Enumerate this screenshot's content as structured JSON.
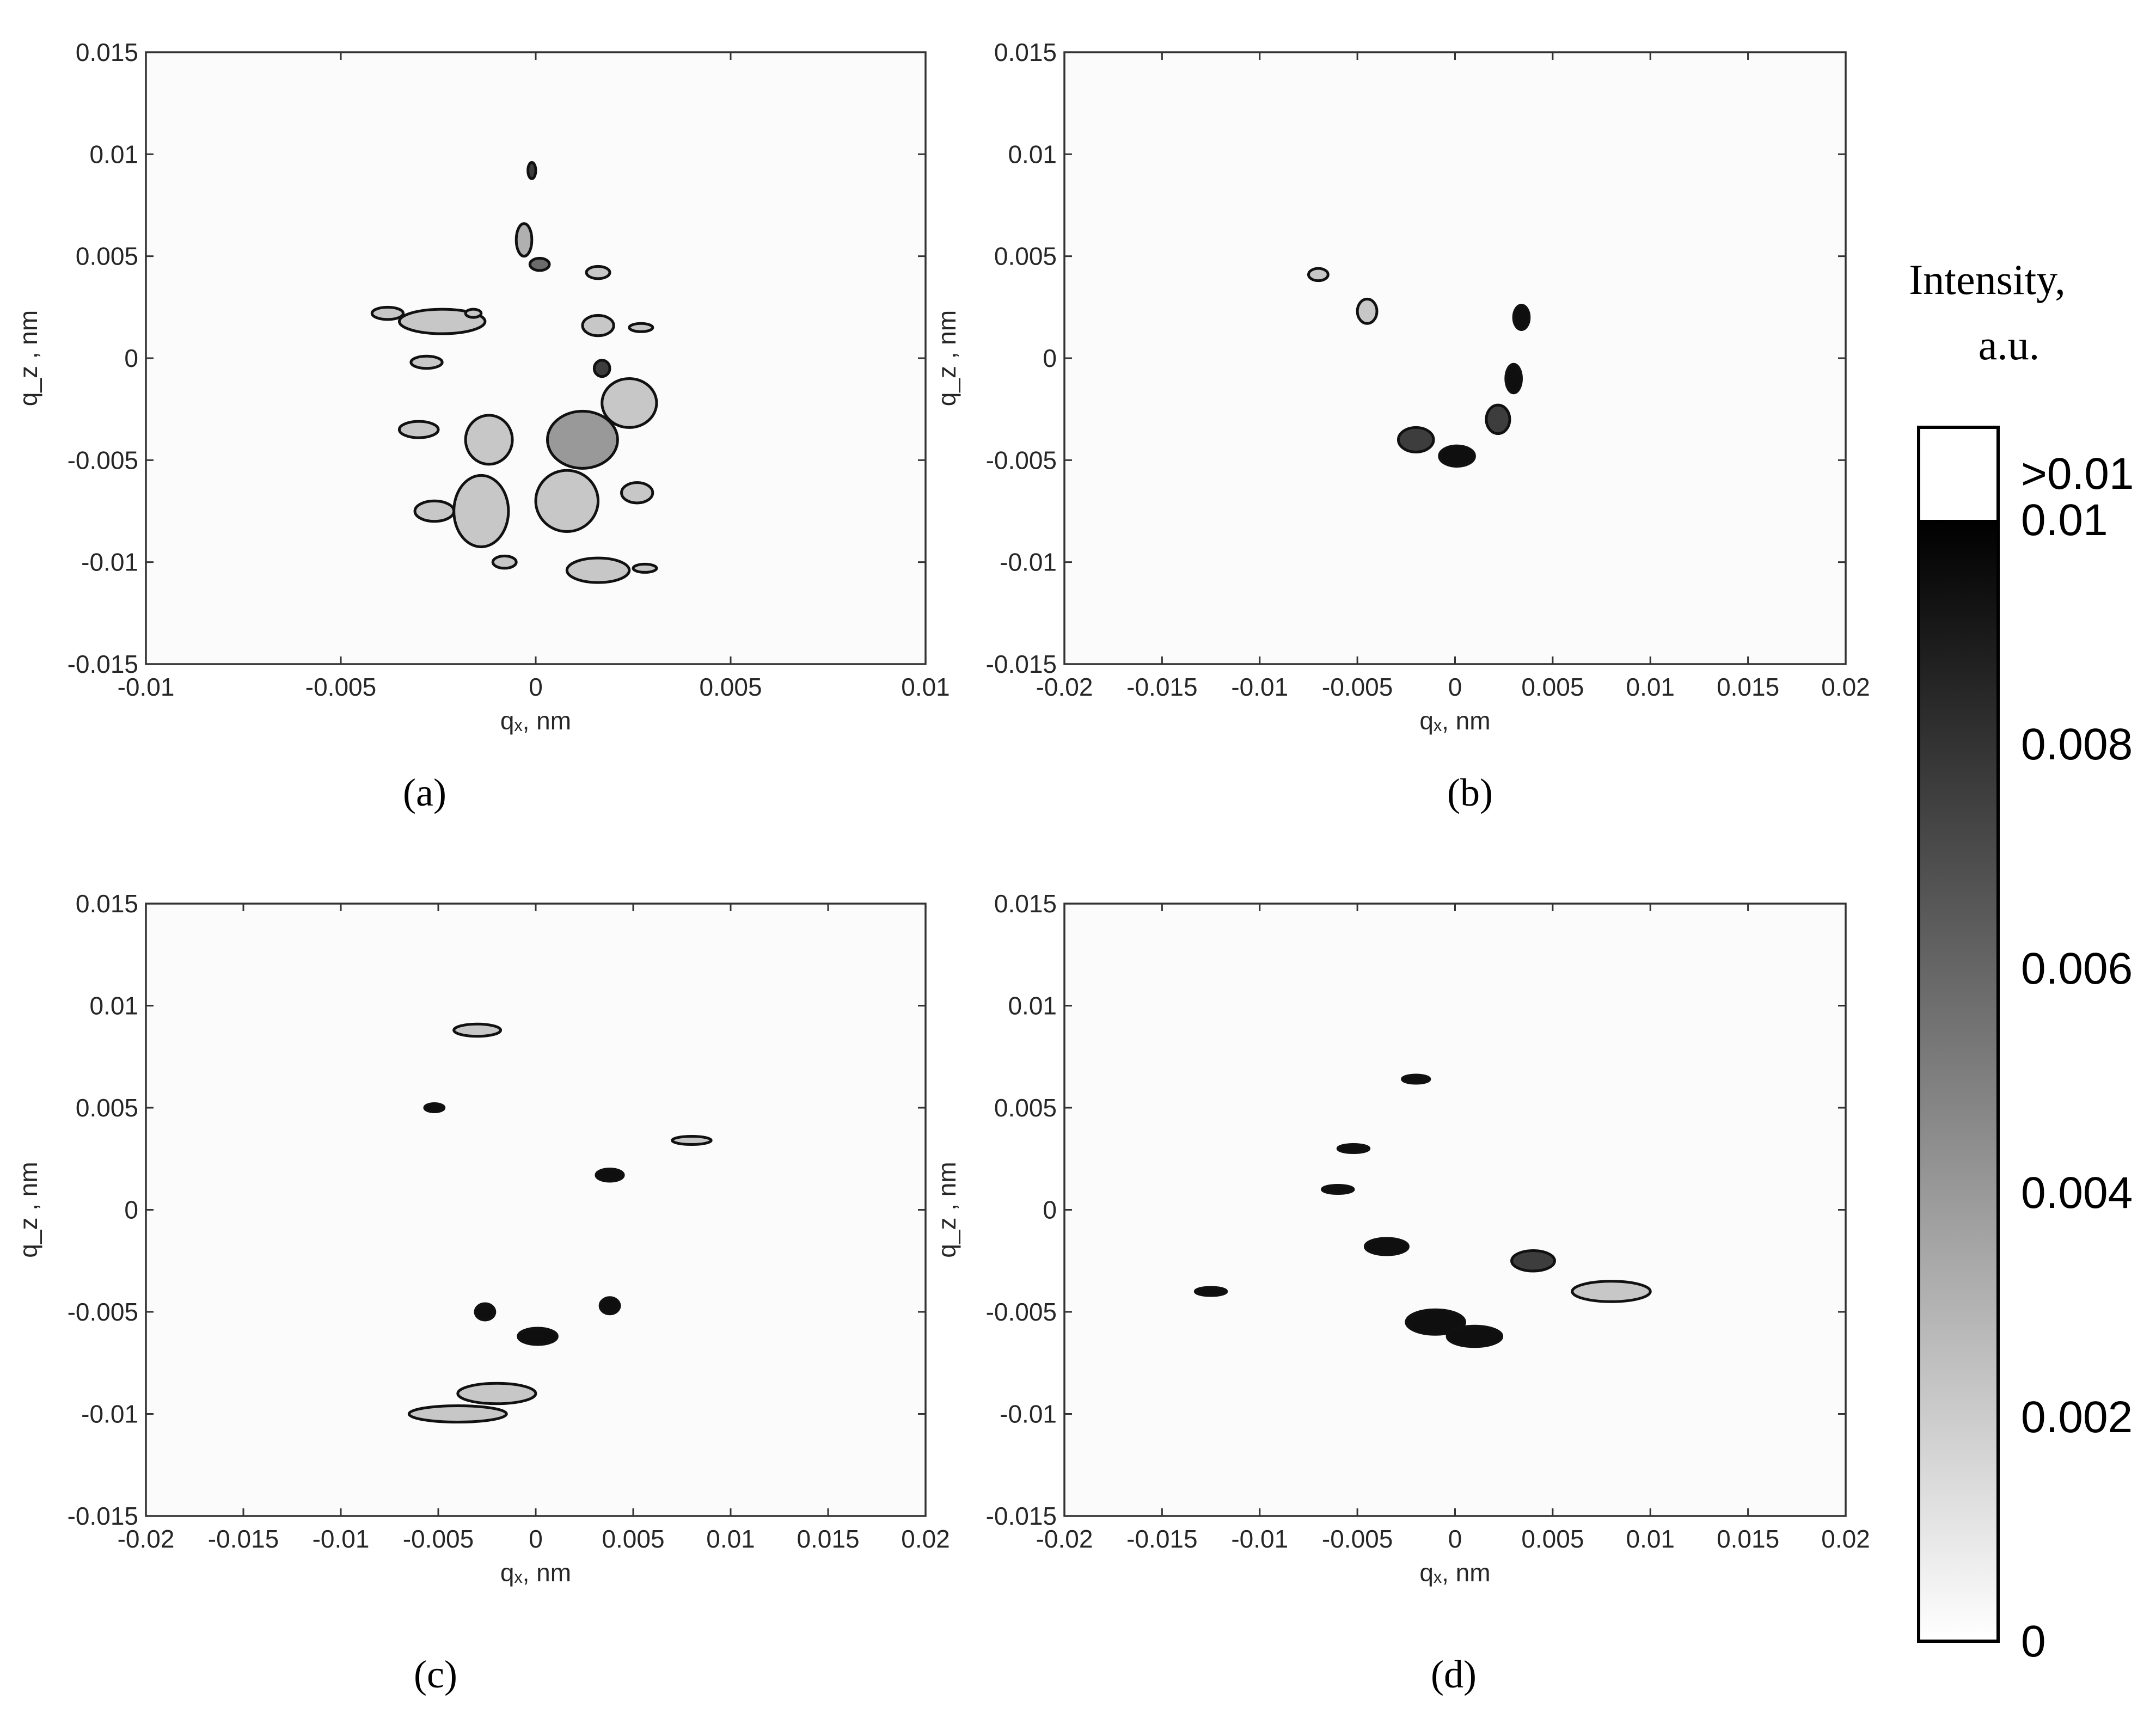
{
  "chart_data": [
    {
      "type": "heatmap",
      "panel_label": "(a)",
      "xlabel": "qₓ, nm",
      "ylabel": "q_z , nm",
      "xlim": [
        -0.01,
        0.01
      ],
      "ylim": [
        -0.015,
        0.015
      ],
      "xticks": [
        "-0.01",
        "-0.005",
        "0",
        "0.005",
        "0.01"
      ],
      "yticks": [
        "0.015",
        "0.01",
        "0.005",
        "0",
        "-0.005",
        "-0.01",
        "-0.015"
      ],
      "contours": [
        {
          "x": -0.0003,
          "y": 0.0058,
          "w": 0.0004,
          "h": 0.0016,
          "level": 0.003
        },
        {
          "x": -0.0001,
          "y": 0.0092,
          "w": 0.0002,
          "h": 0.0008,
          "level": 0.008
        },
        {
          "x": 0.0001,
          "y": 0.0046,
          "w": 0.0005,
          "h": 0.0006,
          "level": 0.006
        },
        {
          "x": -0.0024,
          "y": 0.0018,
          "w": 0.0022,
          "h": 0.0012,
          "level": 0.002
        },
        {
          "x": -0.0038,
          "y": 0.0022,
          "w": 0.0008,
          "h": 0.0006,
          "level": 0.002
        },
        {
          "x": 0.0016,
          "y": 0.0016,
          "w": 0.0008,
          "h": 0.001,
          "level": 0.002
        },
        {
          "x": 0.0017,
          "y": -0.0005,
          "w": 0.0004,
          "h": 0.0008,
          "level": 0.008
        },
        {
          "x": 0.0016,
          "y": 0.0042,
          "w": 0.0006,
          "h": 0.0006,
          "level": 0.002
        },
        {
          "x": -0.0028,
          "y": -0.0002,
          "w": 0.0008,
          "h": 0.0006,
          "level": 0.002
        },
        {
          "x": -0.0012,
          "y": -0.004,
          "w": 0.0012,
          "h": 0.0024,
          "level": 0.002
        },
        {
          "x": -0.0014,
          "y": -0.0075,
          "w": 0.0014,
          "h": 0.0035,
          "level": 0.002
        },
        {
          "x": -0.0026,
          "y": -0.0075,
          "w": 0.001,
          "h": 0.001,
          "level": 0.002
        },
        {
          "x": 0.0012,
          "y": -0.004,
          "w": 0.0018,
          "h": 0.0028,
          "level": 0.004
        },
        {
          "x": 0.0008,
          "y": -0.007,
          "w": 0.0016,
          "h": 0.003,
          "level": 0.002
        },
        {
          "x": 0.0016,
          "y": -0.0104,
          "w": 0.0016,
          "h": 0.0012,
          "level": 0.002
        },
        {
          "x": 0.0024,
          "y": -0.0022,
          "w": 0.0014,
          "h": 0.0024,
          "level": 0.002
        },
        {
          "x": 0.0026,
          "y": -0.0066,
          "w": 0.0008,
          "h": 0.001,
          "level": 0.002
        },
        {
          "x": 0.0027,
          "y": 0.0015,
          "w": 0.0006,
          "h": 0.0004,
          "level": 0.002
        },
        {
          "x": -0.0008,
          "y": -0.01,
          "w": 0.0006,
          "h": 0.0006,
          "level": 0.002
        },
        {
          "x": -0.003,
          "y": -0.0035,
          "w": 0.001,
          "h": 0.0008,
          "level": 0.002
        },
        {
          "x": 0.0028,
          "y": -0.0103,
          "w": 0.0006,
          "h": 0.0004,
          "level": 0.002
        },
        {
          "x": -0.0016,
          "y": 0.0022,
          "w": 0.0004,
          "h": 0.0004,
          "level": 0.002
        }
      ]
    },
    {
      "type": "heatmap",
      "panel_label": "(b)",
      "xlabel": "qₓ, nm",
      "ylabel": "q_z , nm",
      "xlim": [
        -0.02,
        0.02
      ],
      "ylim": [
        -0.015,
        0.015
      ],
      "xticks": [
        "-0.02",
        "-0.015",
        "-0.01",
        "-0.005",
        "0",
        "0.005",
        "0.01",
        "0.015",
        "0.02"
      ],
      "yticks": [
        "0.015",
        "0.01",
        "0.005",
        "0",
        "-0.005",
        "-0.01",
        "-0.015"
      ],
      "contours": [
        {
          "x": 0.0001,
          "y": -0.0048,
          "w": 0.0018,
          "h": 0.001,
          "level": 0.01
        },
        {
          "x": -0.002,
          "y": -0.004,
          "w": 0.0018,
          "h": 0.0012,
          "level": 0.008
        },
        {
          "x": 0.0022,
          "y": -0.003,
          "w": 0.0012,
          "h": 0.0014,
          "level": 0.008
        },
        {
          "x": 0.003,
          "y": -0.001,
          "w": 0.0008,
          "h": 0.0014,
          "level": 0.01
        },
        {
          "x": 0.0034,
          "y": 0.002,
          "w": 0.0008,
          "h": 0.0012,
          "level": 0.01
        },
        {
          "x": -0.0045,
          "y": 0.0023,
          "w": 0.001,
          "h": 0.0012,
          "level": 0.002
        },
        {
          "x": -0.007,
          "y": 0.0041,
          "w": 0.001,
          "h": 0.0006,
          "level": 0.002
        }
      ]
    },
    {
      "type": "heatmap",
      "panel_label": "(c)",
      "xlabel": "qₓ, nm",
      "ylabel": "q_z , nm",
      "xlim": [
        -0.02,
        0.02
      ],
      "ylim": [
        -0.015,
        0.015
      ],
      "xticks": [
        "-0.02",
        "-0.015",
        "-0.01",
        "-0.005",
        "0",
        "0.005",
        "0.01",
        "0.015",
        "0.02"
      ],
      "yticks": [
        "0.015",
        "0.01",
        "0.005",
        "0",
        "-0.005",
        "-0.01",
        "-0.015"
      ],
      "contours": [
        {
          "x": 0.0001,
          "y": -0.0062,
          "w": 0.002,
          "h": 0.0008,
          "level": 0.01
        },
        {
          "x": -0.0026,
          "y": -0.005,
          "w": 0.001,
          "h": 0.0008,
          "level": 0.01
        },
        {
          "x": 0.0038,
          "y": -0.0047,
          "w": 0.001,
          "h": 0.0008,
          "level": 0.01
        },
        {
          "x": 0.0038,
          "y": 0.0017,
          "w": 0.0014,
          "h": 0.0006,
          "level": 0.01
        },
        {
          "x": -0.0052,
          "y": 0.005,
          "w": 0.001,
          "h": 0.0004,
          "level": 0.01
        },
        {
          "x": -0.003,
          "y": 0.0088,
          "w": 0.0024,
          "h": 0.0006,
          "level": 0.002
        },
        {
          "x": -0.004,
          "y": -0.01,
          "w": 0.005,
          "h": 0.0008,
          "level": 0.002
        },
        {
          "x": -0.002,
          "y": -0.009,
          "w": 0.004,
          "h": 0.001,
          "level": 0.002
        },
        {
          "x": 0.008,
          "y": 0.0034,
          "w": 0.002,
          "h": 0.0004,
          "level": 0.002
        }
      ]
    },
    {
      "type": "heatmap",
      "panel_label": "(d)",
      "xlabel": "qₓ, nm",
      "ylabel": "q_z , nm",
      "xlim": [
        -0.02,
        0.02
      ],
      "ylim": [
        -0.015,
        0.015
      ],
      "xticks": [
        "-0.02",
        "-0.015",
        "-0.01",
        "-0.005",
        "0",
        "0.005",
        "0.01",
        "0.015",
        "0.02"
      ],
      "yticks": [
        "0.015",
        "0.01",
        "0.005",
        "0",
        "-0.005",
        "-0.01",
        "-0.015"
      ],
      "contours": [
        {
          "x": -0.001,
          "y": -0.0055,
          "w": 0.003,
          "h": 0.0012,
          "level": 0.01
        },
        {
          "x": 0.001,
          "y": -0.0062,
          "w": 0.0028,
          "h": 0.001,
          "level": 0.01
        },
        {
          "x": -0.0035,
          "y": -0.0018,
          "w": 0.0022,
          "h": 0.0008,
          "level": 0.01
        },
        {
          "x": 0.004,
          "y": -0.0025,
          "w": 0.0022,
          "h": 0.001,
          "level": 0.008
        },
        {
          "x": -0.0052,
          "y": 0.003,
          "w": 0.0016,
          "h": 0.0004,
          "level": 0.01
        },
        {
          "x": -0.002,
          "y": 0.0064,
          "w": 0.0014,
          "h": 0.0004,
          "level": 0.01
        },
        {
          "x": 0.008,
          "y": -0.004,
          "w": 0.004,
          "h": 0.001,
          "level": 0.002
        },
        {
          "x": -0.0125,
          "y": -0.004,
          "w": 0.0016,
          "h": 0.0004,
          "level": 0.01
        },
        {
          "x": -0.006,
          "y": 0.001,
          "w": 0.0016,
          "h": 0.0004,
          "level": 0.01
        }
      ]
    }
  ],
  "colorbar": {
    "title_line1": "Intensity,",
    "title_line2": "a.u.",
    "labels": [
      "0",
      "0.002",
      "0.004",
      "0.006",
      "0.008",
      "0.01",
      ">0.01"
    ],
    "range": [
      0,
      0.01
    ]
  }
}
